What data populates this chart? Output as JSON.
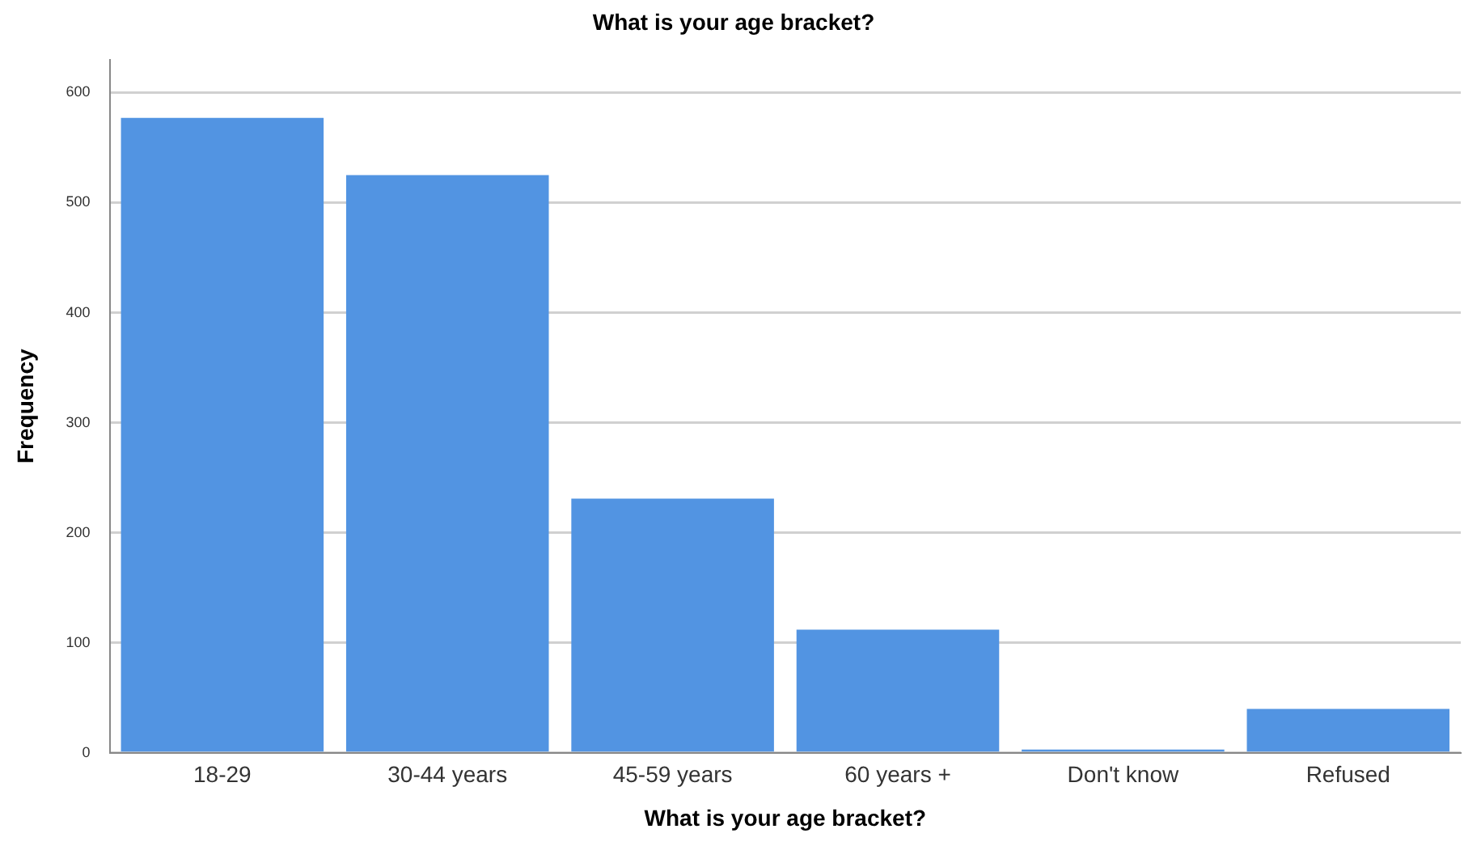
{
  "chart_data": {
    "type": "bar",
    "title": "What is your age bracket?",
    "xlabel": "What is your age bracket?",
    "ylabel": "Frequency",
    "categories": [
      "18-29",
      "30-44 years",
      "45-59 years",
      "60 years +",
      "Don't know",
      "Refused"
    ],
    "values": [
      577,
      525,
      231,
      112,
      3,
      40
    ],
    "color": "#5294e2",
    "ylim": [
      0,
      630
    ],
    "yticks": [
      0,
      100,
      200,
      300,
      400,
      500,
      600
    ],
    "grid": "y",
    "legend": false
  }
}
